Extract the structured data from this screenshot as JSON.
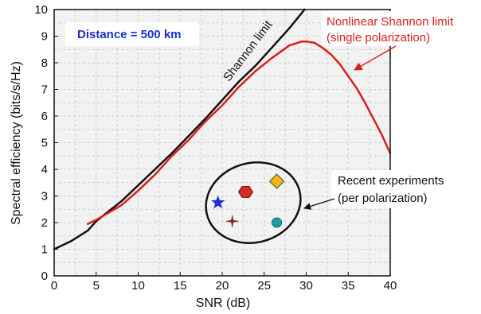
{
  "chart_data": {
    "type": "line",
    "xlabel": "SNR (dB)",
    "ylabel": "Spectral efficiency (bits/s/Hz)",
    "xlim": [
      0,
      40
    ],
    "ylim": [
      0,
      10
    ],
    "xticks": [
      0,
      5,
      10,
      15,
      20,
      25,
      30,
      35,
      40
    ],
    "yticks": [
      0,
      1,
      2,
      3,
      4,
      5,
      6,
      7,
      8,
      9,
      10
    ],
    "grid": true,
    "series": [
      {
        "name": "Shannon limit",
        "color": "#111111",
        "x": [
          0,
          2,
          4,
          5,
          6,
          8,
          10,
          12,
          14,
          16,
          18,
          20,
          22,
          24,
          26,
          28,
          29.8
        ],
        "y": [
          1.0,
          1.3,
          1.7,
          2.05,
          2.3,
          2.8,
          3.4,
          4.0,
          4.6,
          5.25,
          5.9,
          6.6,
          7.3,
          7.9,
          8.6,
          9.3,
          10.0
        ]
      },
      {
        "name": "Nonlinear Shannon limit (single polarization)",
        "color": "#d61f1f",
        "x": [
          4,
          5,
          8,
          10,
          12,
          14,
          16,
          18,
          20,
          22,
          24,
          26,
          28,
          29.5,
          30,
          31,
          32,
          33,
          34,
          35,
          36,
          37,
          38,
          39,
          40
        ],
        "y": [
          1.95,
          2.1,
          2.65,
          3.2,
          3.8,
          4.5,
          5.1,
          5.8,
          6.4,
          7.1,
          7.7,
          8.2,
          8.65,
          8.8,
          8.8,
          8.75,
          8.55,
          8.3,
          7.95,
          7.5,
          7.05,
          6.5,
          5.9,
          5.3,
          4.6
        ]
      }
    ],
    "experiments": [
      {
        "marker": "star",
        "color": "#1f2fd6",
        "x": 19.5,
        "y": 2.75
      },
      {
        "marker": "hexagon",
        "color": "#d62a2a",
        "x": 22.8,
        "y": 3.15
      },
      {
        "marker": "diamond",
        "color": "#f2b70a",
        "x": 26.5,
        "y": 3.55
      },
      {
        "marker": "cross",
        "color": "#8b1f1f",
        "x": 21.2,
        "y": 2.05
      },
      {
        "marker": "circle",
        "color": "#1a9e9e",
        "x": 26.5,
        "y": 2.0
      }
    ],
    "annotations": {
      "distance": "Distance = 500 km",
      "shannon": "Shannon limit",
      "nonlinear_line1": "Nonlinear Shannon limit",
      "nonlinear_line2": "(single polarization)",
      "experiments_line1": "Recent experiments",
      "experiments_line2": "(per polarization)"
    },
    "colors": {
      "distance_text": "#1a2fd0",
      "annotation_red": "#d61f1f",
      "grid": "#cfcfcf",
      "plot_bg": "#f2f2f2"
    }
  }
}
